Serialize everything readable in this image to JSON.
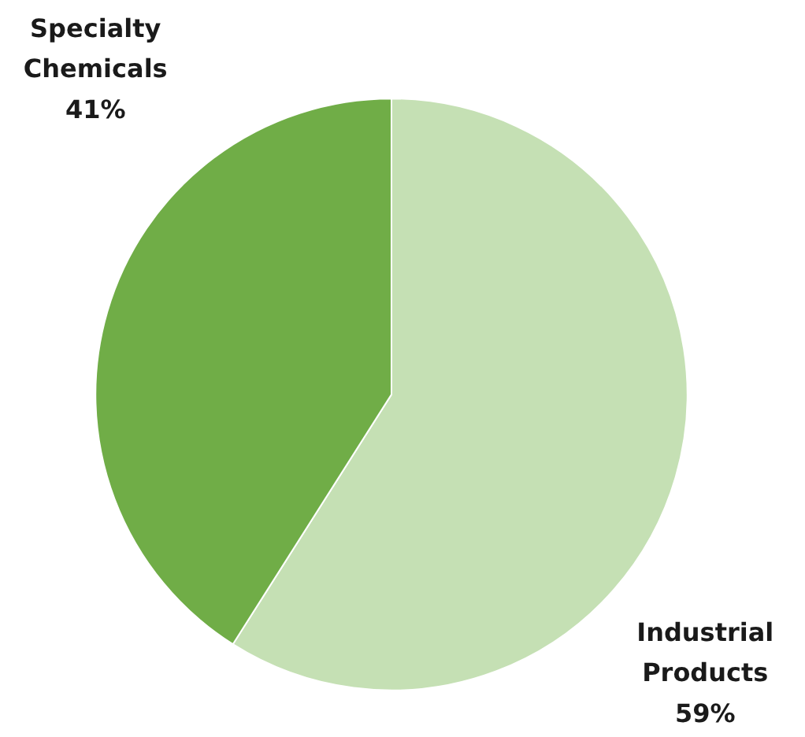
{
  "chart_data": {
    "type": "pie",
    "categories": [
      "Industrial Products",
      "Specialty Chemicals"
    ],
    "values": [
      59,
      41
    ],
    "value_labels": [
      "59%",
      "41%"
    ],
    "colors": [
      "#c5e0b4",
      "#70ad47"
    ]
  }
}
